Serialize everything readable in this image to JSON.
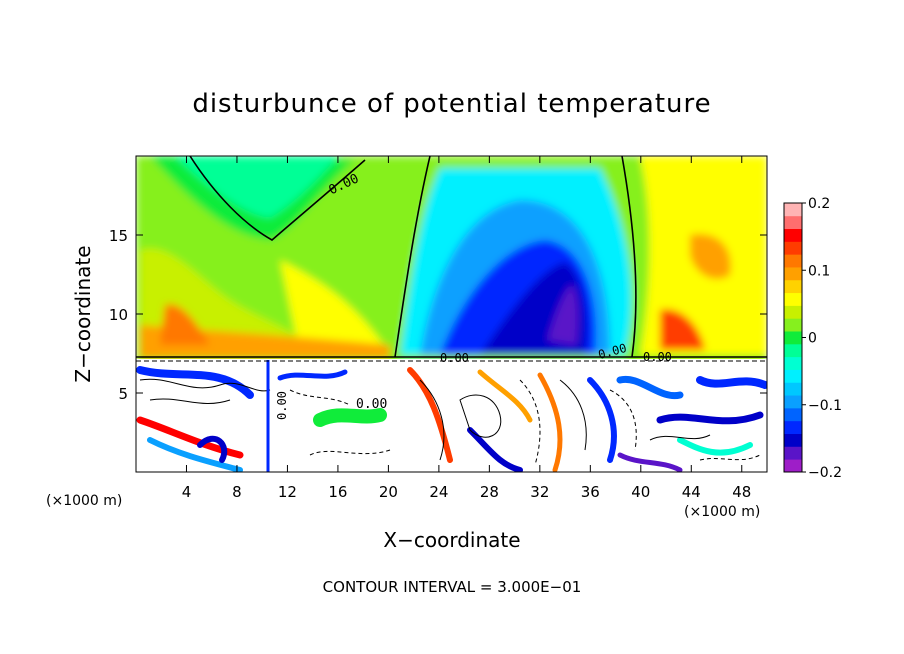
{
  "chart_data": {
    "type": "heatmap",
    "title": "disturbunce of potential temperature",
    "xlabel": "X−coordinate",
    "ylabel": "Z−coordinate",
    "x_unit_left": "(×1000 m)",
    "x_unit_right": "(×1000 m)",
    "xlim": [
      0,
      50
    ],
    "ylim": [
      0,
      20
    ],
    "x_ticks": [
      4,
      8,
      12,
      16,
      20,
      24,
      28,
      32,
      36,
      40,
      44,
      48
    ],
    "y_ticks": [
      5,
      10,
      15
    ],
    "colorbar": {
      "range": [
        -0.2,
        0.2
      ],
      "tick_labels": [
        "0.2",
        "0.1",
        "0",
        "−0.1",
        "−0.2"
      ],
      "tick_values": [
        0.2,
        0.1,
        0,
        -0.1,
        -0.2
      ],
      "colors": [
        "#9e1ec8",
        "#5a14c8",
        "#0000c8",
        "#0028ff",
        "#0064ff",
        "#0aa0ff",
        "#00c8ff",
        "#00f0ff",
        "#00ffd2",
        "#00ff96",
        "#10ec3a",
        "#86f01e",
        "#c8f000",
        "#ffff00",
        "#ffd200",
        "#ffa000",
        "#ff7800",
        "#ff3c00",
        "#ff0000",
        "#ff6e6e",
        "#ffb4b4"
      ]
    },
    "contour_labels": [
      "0.00",
      "0.00",
      "0.00",
      "0.00",
      "0.00",
      "0.00"
    ],
    "footer": "CONTOUR INTERVAL = 3.000E−01",
    "grid": false,
    "legend": "colorbar-right"
  }
}
